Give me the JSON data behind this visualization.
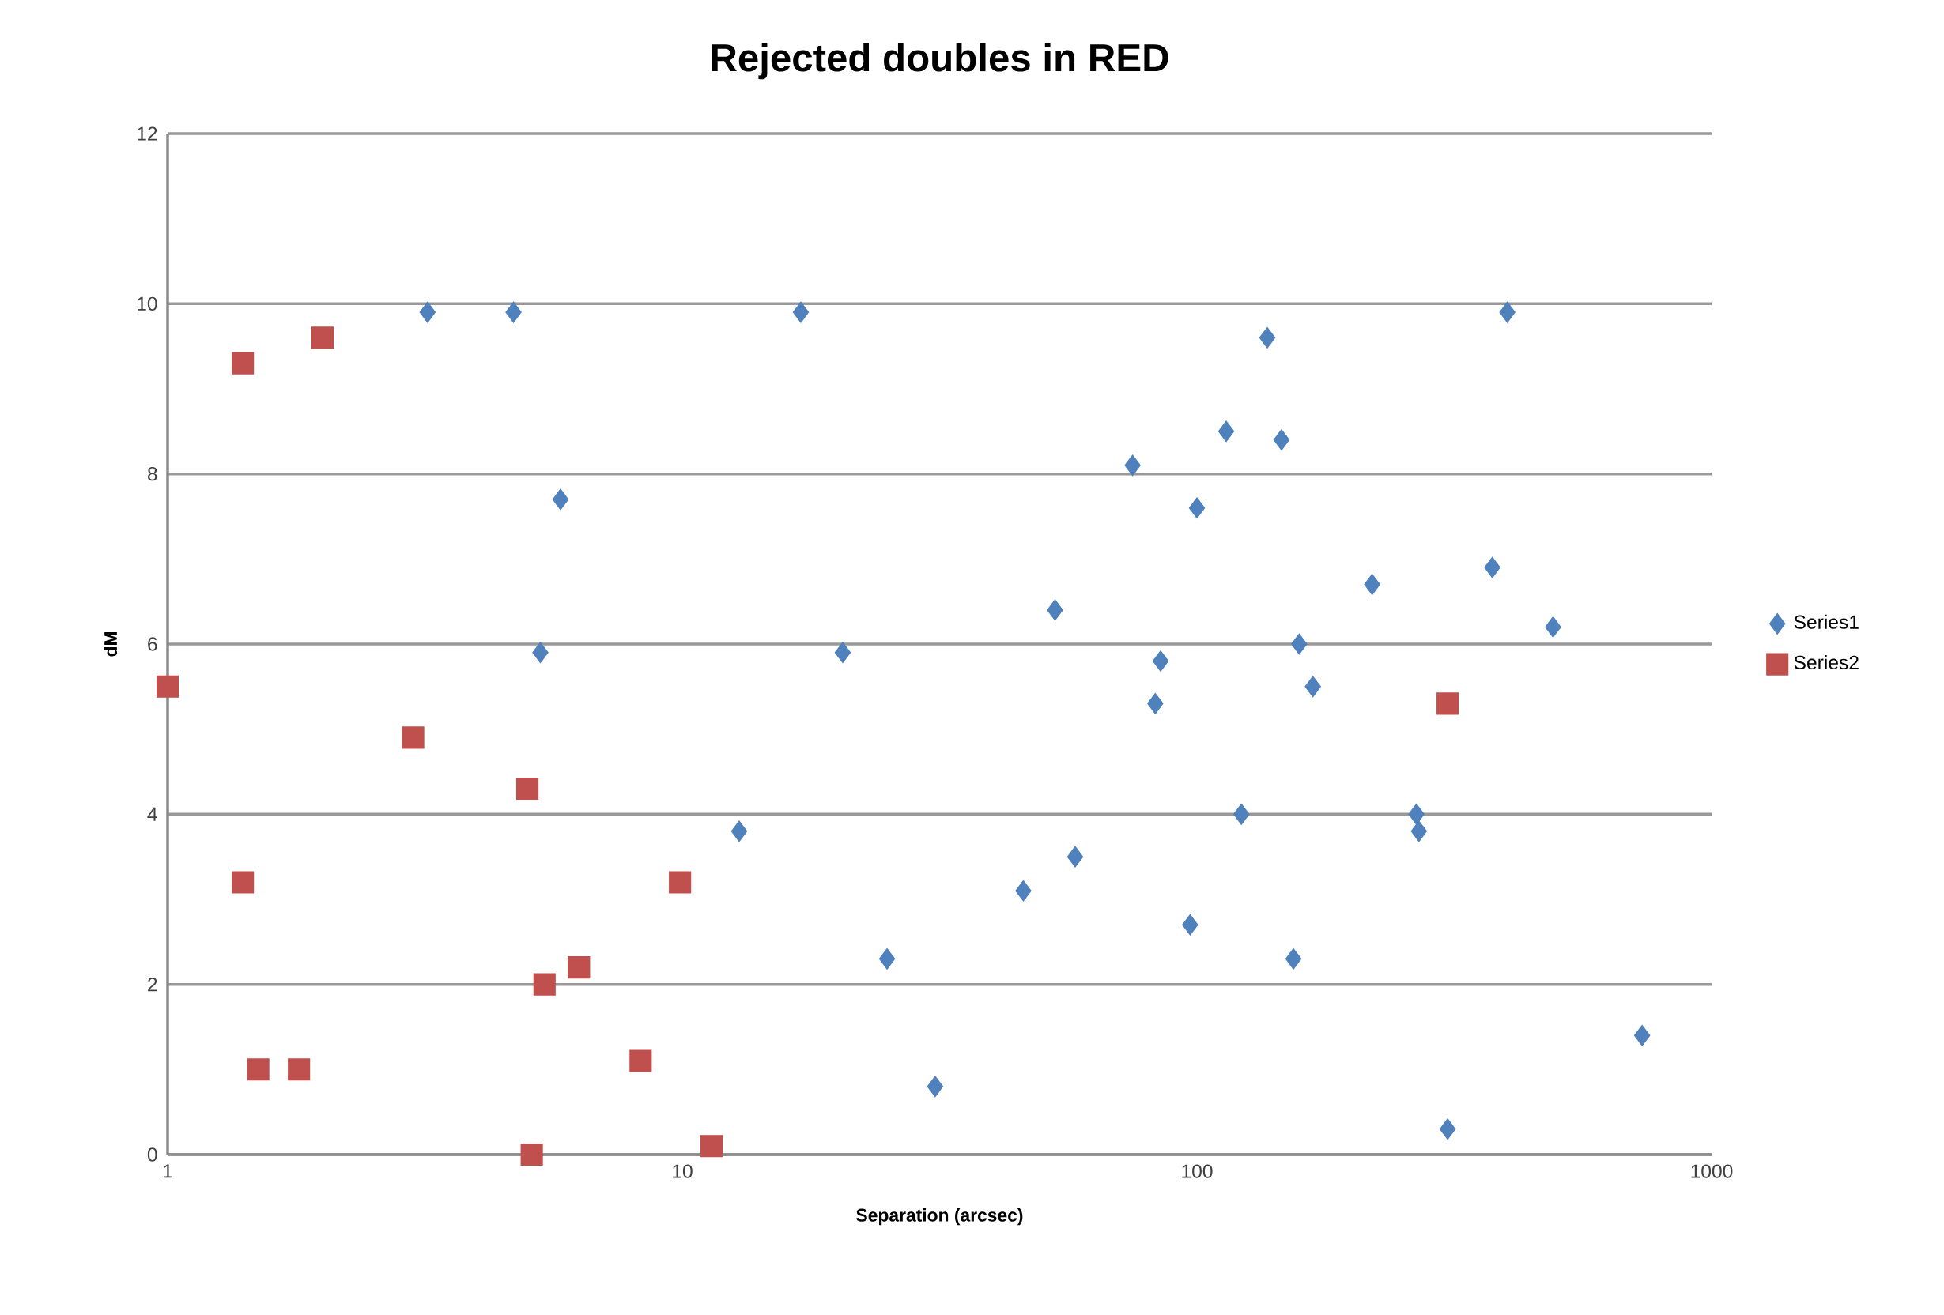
{
  "chart_data": {
    "type": "scatter",
    "title": "Rejected doubles in RED",
    "xlabel": "Separation (arcsec)",
    "ylabel": "dM",
    "log": "x",
    "xlim": [
      1,
      1000
    ],
    "xticks": [
      1,
      10,
      100,
      1000
    ],
    "ylim": [
      0,
      12
    ],
    "yticks": [
      0,
      2,
      4,
      6,
      8,
      10,
      12
    ],
    "grid": "y",
    "legend": "right",
    "series": [
      {
        "name": "Series1",
        "color": "#4f81bd",
        "marker": "diamond",
        "x": [
          3.2,
          4.7,
          17,
          137,
          401,
          75,
          114,
          146,
          5.8,
          100,
          219,
          375,
          492,
          53,
          5.3,
          20.5,
          85,
          158,
          83,
          168,
          12.9,
          122,
          267,
          270,
          58,
          46,
          97,
          25,
          154,
          31,
          307,
          733
        ],
        "values": [
          9.9,
          9.9,
          9.9,
          9.6,
          9.9,
          8.1,
          8.5,
          8.4,
          7.7,
          7.6,
          6.7,
          6.9,
          6.2,
          6.4,
          5.9,
          5.9,
          5.8,
          6.0,
          5.3,
          5.5,
          3.8,
          4.0,
          4.0,
          3.8,
          3.5,
          3.1,
          2.7,
          2.3,
          2.3,
          0.8,
          0.3,
          1.4
        ]
      },
      {
        "name": "Series2",
        "color": "#c0504d",
        "marker": "square",
        "x": [
          1,
          1.4,
          2.0,
          3.0,
          5.0,
          1.4,
          9.9,
          6.3,
          5.4,
          1.5,
          1.8,
          8.3,
          5.1,
          11.4,
          307
        ],
        "values": [
          5.5,
          9.3,
          9.6,
          4.9,
          4.3,
          3.2,
          3.2,
          2.2,
          2.0,
          1.0,
          1.0,
          1.1,
          0,
          0.1,
          5.3
        ]
      }
    ]
  }
}
